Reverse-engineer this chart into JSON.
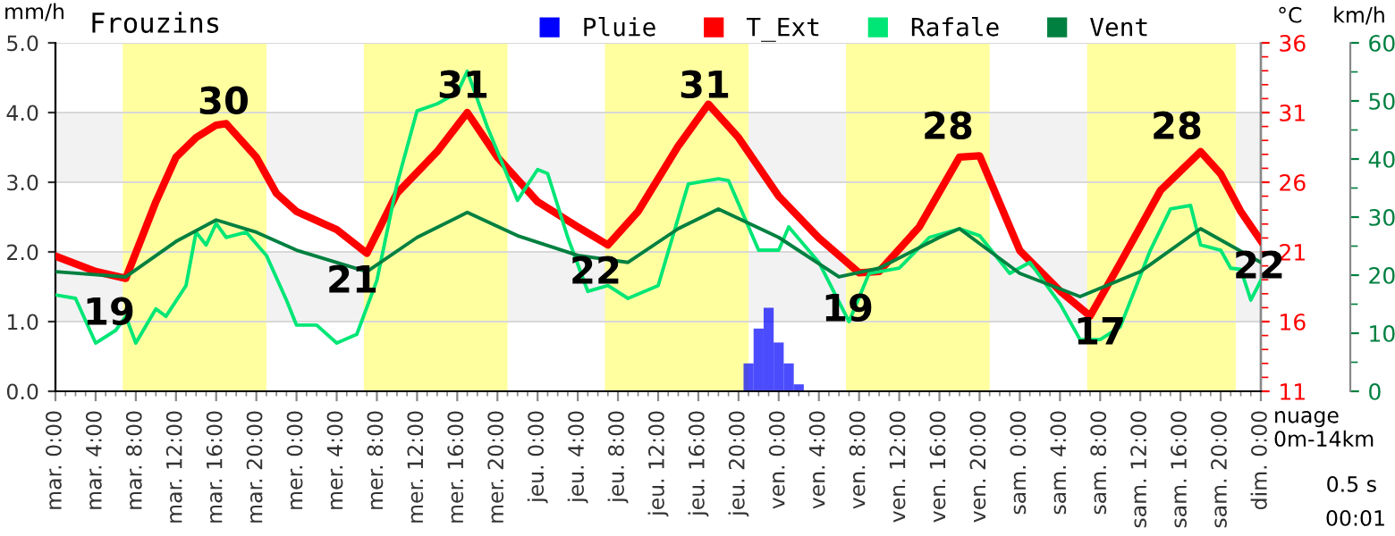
{
  "chart_data": {
    "type": "line",
    "title": "Frouzins",
    "ylabel": "mm/h",
    "y2label": "°C",
    "y3label": "km/h",
    "categories": [
      "mar. 0:00",
      null,
      null,
      null,
      "mar. 4:00",
      null,
      null,
      null,
      "mar. 8:00",
      null,
      null,
      null,
      "mar. 12:00",
      null,
      null,
      null,
      "mar. 16:00",
      null,
      null,
      null,
      "mar. 20:00",
      null,
      null,
      null,
      "mer. 0:00",
      null,
      null,
      null,
      "mer. 4:00",
      null,
      null,
      null,
      "mer. 8:00",
      null,
      null,
      null,
      "mer. 12:00",
      null,
      null,
      null,
      "mer. 16:00",
      null,
      null,
      null,
      "mer. 20:00",
      null,
      null,
      null,
      "jeu. 0:00",
      null,
      null,
      null,
      "jeu. 4:00",
      null,
      null,
      null,
      "jeu. 8:00",
      null,
      null,
      null,
      "jeu. 12:00",
      null,
      null,
      null,
      "jeu. 16:00",
      null,
      null,
      null,
      "jeu. 20:00",
      null,
      null,
      null,
      "ven. 0:00",
      null,
      null,
      null,
      "ven. 4:00",
      null,
      null,
      null,
      "ven. 8:00",
      null,
      null,
      null,
      "ven. 12:00",
      null,
      null,
      null,
      "ven. 16:00",
      null,
      null,
      null,
      "ven. 20:00",
      null,
      null,
      null,
      "sam. 0:00",
      null,
      null,
      null,
      "sam. 4:00",
      null,
      null,
      null,
      "sam. 8:00",
      null,
      null,
      null,
      "sam. 12:00",
      null,
      null,
      null,
      "sam. 16:00",
      null,
      null,
      null,
      "sam. 20:00",
      null,
      null,
      null,
      "dim. 0:00"
    ],
    "ylim": [
      0,
      5
    ],
    "yticks": [
      {
        "value": 0,
        "label": "0.0"
      },
      {
        "value": 1,
        "label": "1.0"
      },
      {
        "value": 2,
        "label": "2.0"
      },
      {
        "value": 3,
        "label": "3.0"
      },
      {
        "value": 4,
        "label": "4.0"
      },
      {
        "value": 5,
        "label": "5.0"
      }
    ],
    "y2lim": [
      11,
      36
    ],
    "y2ticks": [
      11,
      16,
      21,
      26,
      31,
      36
    ],
    "y3lim": [
      0,
      60
    ],
    "y3ticks": [
      0,
      10,
      20,
      30,
      40,
      50,
      60
    ],
    "grid": "y",
    "legend": "top",
    "series": [
      {
        "name": "Pluie",
        "type": "bar",
        "color": "#0000ff",
        "axis": "y",
        "values": [
          null,
          null,
          null,
          null,
          null,
          null,
          null,
          null,
          null,
          null,
          null,
          null,
          null,
          null,
          null,
          null,
          null,
          null,
          null,
          null,
          null,
          null,
          null,
          null,
          null,
          null,
          null,
          null,
          null,
          null,
          null,
          null,
          null,
          null,
          null,
          null,
          null,
          null,
          null,
          null,
          null,
          null,
          null,
          null,
          null,
          null,
          null,
          null,
          null,
          null,
          null,
          null,
          null,
          null,
          null,
          null,
          null,
          null,
          null,
          null,
          null,
          null,
          null,
          null,
          null,
          null,
          null,
          null,
          null,
          0.4,
          0.9,
          1.2,
          0.7,
          0.4,
          0.1,
          null,
          null,
          null,
          null,
          null,
          null,
          null,
          null,
          null,
          null,
          null,
          null,
          null,
          null,
          null,
          null,
          null,
          null,
          null,
          null,
          null,
          null,
          null,
          null,
          null,
          null,
          null,
          null,
          null,
          null,
          null,
          null,
          null,
          null,
          null,
          null,
          null,
          null,
          null,
          null,
          null,
          null,
          null,
          null,
          null,
          null
        ]
      },
      {
        "name": "T_Ext",
        "color": "#ff0000",
        "axis": "y2",
        "values": [
          20.7,
          null,
          null,
          null,
          19.6,
          null,
          null,
          19.1,
          null,
          null,
          24.6,
          null,
          27.8,
          null,
          29.2,
          null,
          30.1,
          30.2,
          null,
          null,
          27.8,
          null,
          25.2,
          null,
          23.9,
          null,
          null,
          null,
          22.6,
          null,
          null,
          20.9,
          null,
          null,
          25.2,
          null,
          null,
          null,
          28.2,
          null,
          null,
          31.0,
          null,
          null,
          27.8,
          null,
          null,
          null,
          24.6,
          null,
          null,
          null,
          22.8,
          null,
          null,
          21.5,
          null,
          null,
          23.9,
          null,
          null,
          null,
          28.6,
          null,
          null,
          31.6,
          null,
          null,
          29.2,
          null,
          null,
          null,
          25.0,
          null,
          null,
          null,
          22.0,
          null,
          null,
          null,
          19.5,
          null,
          19.6,
          null,
          null,
          null,
          22.8,
          null,
          null,
          null,
          27.8,
          null,
          27.9,
          null,
          null,
          null,
          21.1,
          null,
          null,
          null,
          18.2,
          null,
          null,
          16.4,
          null,
          null,
          20.2,
          null,
          null,
          null,
          25.4,
          null,
          null,
          null,
          28.2,
          null,
          26.6,
          null,
          23.9,
          null,
          21.8
        ]
      },
      {
        "name": "Rafale",
        "color": "#00e676",
        "axis": "y3",
        "values": [
          16.6,
          null,
          16.0,
          null,
          8.3,
          null,
          10.5,
          12.9,
          8.3,
          null,
          14.2,
          12.9,
          null,
          18.2,
          27.4,
          25.2,
          28.9,
          26.5,
          null,
          27.4,
          null,
          23.4,
          null,
          15.7,
          11.4,
          null,
          11.4,
          null,
          8.3,
          null,
          9.8,
          null,
          19.1,
          null,
          35.7,
          null,
          48.3,
          null,
          49.5,
          null,
          51.4,
          55.1,
          null,
          45.5,
          null,
          null,
          32.9,
          null,
          38.2,
          37.5,
          null,
          26.5,
          null,
          17.2,
          null,
          18.2,
          null,
          16.0,
          null,
          null,
          18.2,
          null,
          null,
          35.7,
          null,
          null,
          36.6,
          36.3,
          null,
          null,
          24.3,
          null,
          24.3,
          28.3,
          null,
          null,
          22.2,
          null,
          null,
          12.0,
          null,
          20.3,
          null,
          null,
          21.2,
          null,
          null,
          26.5,
          null,
          null,
          28.0,
          null,
          26.8,
          null,
          null,
          20.3,
          null,
          22.2,
          null,
          null,
          15.1,
          null,
          8.9,
          null,
          8.9,
          null,
          11.1,
          null,
          null,
          24.3,
          null,
          31.4,
          null,
          32.0,
          25.2,
          null,
          24.3,
          21.2,
          21.0,
          15.7,
          19.1
        ]
      },
      {
        "name": "Vent",
        "color": "#008040",
        "axis": "y3",
        "values": [
          20.6,
          null,
          null,
          null,
          null,
          null,
          null,
          19.7,
          null,
          null,
          null,
          null,
          25.8,
          null,
          null,
          null,
          29.5,
          null,
          null,
          null,
          27.4,
          null,
          null,
          null,
          24.3,
          null,
          null,
          null,
          null,
          null,
          null,
          20.6,
          null,
          null,
          null,
          null,
          26.5,
          null,
          null,
          null,
          null,
          30.8,
          null,
          null,
          null,
          null,
          26.8,
          null,
          null,
          null,
          null,
          null,
          23.4,
          null,
          null,
          null,
          null,
          22.2,
          null,
          null,
          null,
          null,
          28.0,
          null,
          null,
          null,
          31.4,
          null,
          null,
          null,
          null,
          null,
          26.5,
          null,
          null,
          null,
          null,
          null,
          19.7,
          null,
          null,
          null,
          21.2,
          null,
          null,
          null,
          null,
          null,
          26.5,
          null,
          28.0,
          null,
          null,
          null,
          null,
          null,
          20.3,
          null,
          null,
          null,
          null,
          null,
          16.3,
          null,
          null,
          null,
          null,
          null,
          20.6,
          null,
          null,
          null,
          null,
          null,
          28.0,
          null,
          null,
          null,
          null,
          null,
          22.2
        ]
      }
    ],
    "bands": [
      {
        "axis": "y",
        "from": 1,
        "to": 2,
        "color": "#f2f2f2"
      },
      {
        "axis": "y",
        "from": 3,
        "to": 4,
        "color": "#f2f2f2"
      }
    ],
    "annotations": [
      "19",
      "30",
      "21",
      "31",
      "22",
      "31",
      "19",
      "28",
      "17",
      "28",
      "22",
      "nuage\n0m-14km",
      "0.5 s",
      "00:01"
    ]
  }
}
